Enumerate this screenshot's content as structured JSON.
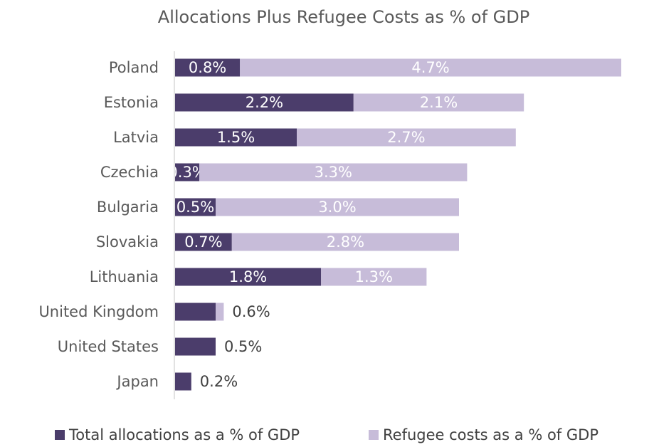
{
  "chart_data": {
    "type": "bar",
    "orientation": "horizontal",
    "stacked": true,
    "title": "Allocations Plus Refugee Costs as % of GDP",
    "categories": [
      "Poland",
      "Estonia",
      "Latvia",
      "Czechia",
      "Bulgaria",
      "Slovakia",
      "Lithuania",
      "United Kingdom",
      "United States",
      "Japan"
    ],
    "series": [
      {
        "name": "Total allocations as a % of GDP",
        "values": [
          0.8,
          2.2,
          1.5,
          0.3,
          0.5,
          0.7,
          1.8,
          0.5,
          0.5,
          0.2
        ],
        "labels": [
          "0.8%",
          "2.2%",
          "1.5%",
          "0.3%",
          "0.5%",
          "0.7%",
          "1.8%",
          null,
          null,
          null
        ],
        "color": "#4b3d6b"
      },
      {
        "name": "Refugee costs as a % of GDP",
        "values": [
          4.7,
          2.1,
          2.7,
          3.3,
          3.0,
          2.8,
          1.3,
          0.1,
          0.0,
          0.0
        ],
        "labels": [
          "4.7%",
          "2.1%",
          "2.7%",
          "3.3%",
          "3.0%",
          "2.8%",
          "1.3%",
          null,
          null,
          null
        ],
        "color": "#c7bcd9"
      }
    ],
    "outside_labels": [
      null,
      null,
      null,
      null,
      null,
      null,
      null,
      "0.6%",
      "0.5%",
      "0.2%"
    ],
    "xlim": [
      0,
      5.5
    ],
    "grid": false,
    "legend": "bottom",
    "colors": {
      "title": "#595959",
      "category_label": "#595959",
      "axis_line": "#d9d9d9",
      "inside_label": "#ffffff",
      "outside_label": "#404040",
      "legend_text": "#404040"
    }
  }
}
